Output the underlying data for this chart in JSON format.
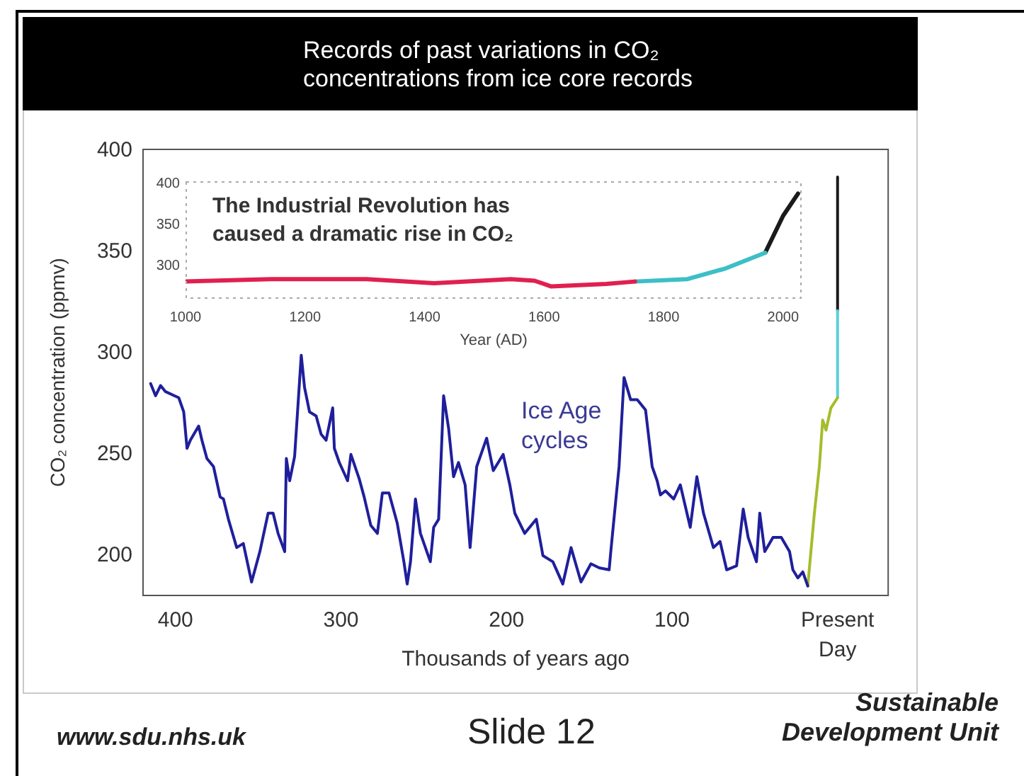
{
  "chart_data": [
    {
      "type": "line",
      "title": "Records of past variations in CO₂ concentrations from ice core records",
      "xlabel": "Thousands of years ago",
      "ylabel": "CO₂ concentration (ppmv)",
      "annotations": [
        "Ice Age cycles",
        "www.sdu.nhs.uk",
        "Slide 12",
        "Sustainable Development Unit"
      ],
      "xlim": [
        420,
        -31
      ],
      "ylim": [
        180,
        401
      ],
      "xticks": [
        400,
        300,
        200,
        100,
        {
          "value": 0,
          "label": "Present Day"
        }
      ],
      "yticks": [
        200,
        250,
        300,
        350,
        400
      ],
      "series": [
        {
          "color": "#1f1f9c",
          "x": [
            415,
            412,
            409,
            406,
            398,
            395,
            393,
            391,
            386,
            384,
            381,
            377,
            373,
            371,
            368,
            363,
            359,
            354,
            349,
            344,
            341,
            338,
            334,
            333,
            331,
            328,
            324,
            322,
            319,
            315,
            312,
            309,
            305,
            304,
            301,
            296,
            294,
            289,
            286,
            282,
            278,
            275,
            271,
            266,
            262,
            260,
            258,
            255,
            252,
            246,
            244,
            241,
            238,
            235,
            232,
            229,
            225,
            222,
            218,
            212,
            208,
            202,
            198,
            195,
            189,
            182,
            178,
            172,
            166,
            161,
            155,
            149,
            144,
            138,
            137,
            132,
            129,
            125,
            121,
            116,
            112,
            109,
            107,
            104,
            99,
            95,
            89,
            85,
            81,
            75,
            71,
            67,
            61,
            57,
            54,
            49,
            47,
            44,
            39,
            34,
            29,
            27,
            24,
            21,
            18
          ],
          "values": [
            285,
            279,
            284,
            281,
            278,
            271,
            253,
            257,
            264,
            257,
            248,
            244,
            229,
            228,
            218,
            204,
            206,
            187,
            202,
            221,
            221,
            211,
            202,
            248,
            237,
            249,
            299,
            283,
            271,
            269,
            260,
            257,
            273,
            253,
            246,
            237,
            250,
            238,
            229,
            215,
            211,
            231,
            231,
            216,
            197,
            186,
            197,
            228,
            211,
            197,
            214,
            218,
            279,
            263,
            239,
            246,
            235,
            204,
            244,
            258,
            242,
            250,
            235,
            221,
            211,
            218,
            200,
            197,
            186,
            204,
            187,
            196,
            194,
            193,
            202,
            244,
            288,
            277,
            277,
            272,
            244,
            237,
            230,
            232,
            228,
            235,
            214,
            239,
            221,
            204,
            207,
            193,
            195,
            223,
            209,
            197,
            221,
            202,
            209,
            209,
            202,
            193,
            189,
            192,
            185
          ]
        },
        {
          "color": "#a4bd2c",
          "x": [
            18,
            14,
            11,
            9,
            7,
            4,
            0
          ],
          "values": [
            185,
            221,
            244,
            267,
            262,
            273,
            278
          ]
        },
        {
          "color": "#5ccfd6",
          "x": [
            0,
            0
          ],
          "values": [
            278,
            321
          ]
        },
        {
          "color": "#1a1a1a",
          "x": [
            0,
            0
          ],
          "values": [
            321,
            387
          ]
        }
      ]
    },
    {
      "type": "line",
      "xlabel": "Year (AD)",
      "annotations": [
        "The Industrial Revolution has caused a dramatic rise in CO₂"
      ],
      "xlim": [
        1000,
        2031
      ],
      "ylim": [
        260,
        403
      ],
      "xticks": [
        1000,
        1200,
        1400,
        1600,
        1800,
        2000
      ],
      "yticks": [
        300,
        350,
        400
      ],
      "series": [
        {
          "color": "#e0204f",
          "x": [
            1000,
            1143,
            1303,
            1416,
            1544,
            1584,
            1612,
            1704,
            1752
          ],
          "values": [
            281,
            284,
            284,
            279,
            284,
            282,
            275,
            278,
            281
          ]
        },
        {
          "color": "#3cbfc6",
          "x": [
            1752,
            1840,
            1904,
            1970
          ],
          "values": [
            281,
            284,
            297,
            316
          ]
        },
        {
          "color": "#1a1a1a",
          "x": [
            1970,
            2000,
            2025
          ],
          "values": [
            316,
            361,
            388
          ]
        }
      ]
    }
  ]
}
